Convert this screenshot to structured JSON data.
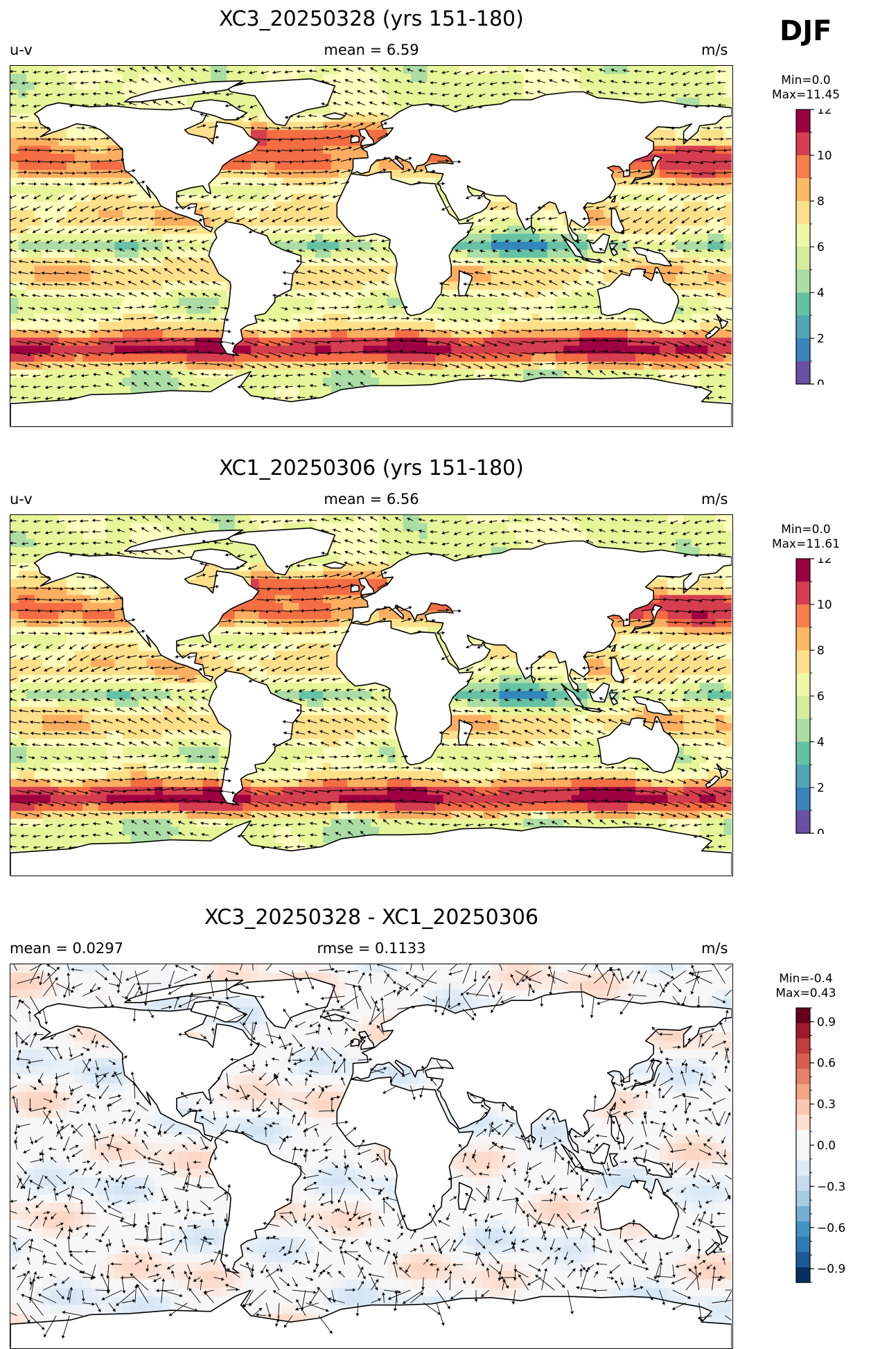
{
  "season": "DJF",
  "land_color": "#ffffff",
  "coast_color": "#000000",
  "panels": [
    {
      "title": "XC3_20250328 (yrs 151-180)",
      "left_label": "u-v",
      "center_label": "mean = 6.59",
      "right_label": "m/s",
      "cbar_min": "Min=0.0",
      "cbar_max": "Max=11.45",
      "cbar_ticks": [
        "0",
        "2",
        "4",
        "6",
        "8",
        "10",
        "12"
      ],
      "kind": "mean"
    },
    {
      "title": "XC1_20250306 (yrs 151-180)",
      "left_label": "u-v",
      "center_label": "mean = 6.56",
      "right_label": "m/s",
      "cbar_min": "Min=0.0",
      "cbar_max": "Max=11.61",
      "cbar_ticks": [
        "0",
        "2",
        "4",
        "6",
        "8",
        "10",
        "12"
      ],
      "kind": "mean"
    },
    {
      "title": "XC3_20250328 - XC1_20250306",
      "left_label": "mean = 0.0297",
      "center_label": "rmse = 0.1133",
      "right_label": "m/s",
      "cbar_min": "Min=-0.4",
      "cbar_max": "Max=0.43",
      "cbar_ticks": [
        "−0.9",
        "−0.6",
        "−0.3",
        "0.0",
        "0.3",
        "0.6",
        "0.9"
      ],
      "kind": "diff"
    }
  ],
  "chart_data": [
    {
      "type": "heatmap",
      "title": "XC3_20250328 (yrs 151-180)",
      "variable": "u-v",
      "units": "m/s",
      "mean": 6.59,
      "min": 0.0,
      "max": 11.45,
      "colorbar_range": [
        0,
        12
      ],
      "colorbar_ticks": [
        0,
        2,
        4,
        6,
        8,
        10,
        12
      ],
      "colormap": "Spectral_r",
      "overlay": "wind vectors"
    },
    {
      "type": "heatmap",
      "title": "XC1_20250306 (yrs 151-180)",
      "variable": "u-v",
      "units": "m/s",
      "mean": 6.56,
      "min": 0.0,
      "max": 11.61,
      "colorbar_range": [
        0,
        12
      ],
      "colorbar_ticks": [
        0,
        2,
        4,
        6,
        8,
        10,
        12
      ],
      "colormap": "Spectral_r",
      "overlay": "wind vectors"
    },
    {
      "type": "heatmap",
      "title": "XC3_20250328 - XC1_20250306",
      "units": "m/s",
      "mean": 0.0297,
      "rmse": 0.1133,
      "min": -0.4,
      "max": 0.43,
      "colorbar_range": [
        -1.0,
        1.0
      ],
      "colorbar_ticks": [
        -0.9,
        -0.6,
        -0.3,
        0.0,
        0.3,
        0.6,
        0.9
      ],
      "colormap": "RdBu_r",
      "overlay": "wind vector differences"
    }
  ]
}
